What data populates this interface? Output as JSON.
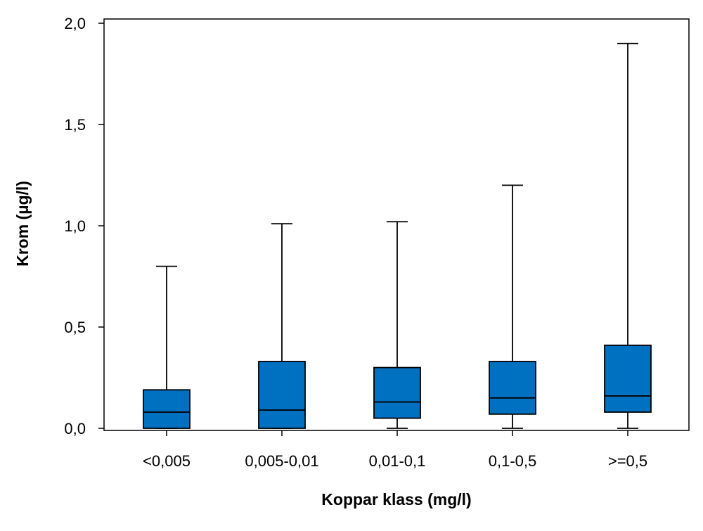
{
  "chart_data": {
    "type": "box",
    "title": "",
    "xlabel": "Koppar klass (mg/l)",
    "ylabel": "Krom (µg/l)",
    "ylim": [
      0.0,
      2.0
    ],
    "yticks": [
      {
        "value": 0.0,
        "label": "0,0"
      },
      {
        "value": 0.5,
        "label": "0,5"
      },
      {
        "value": 1.0,
        "label": "1,0"
      },
      {
        "value": 1.5,
        "label": "1,5"
      },
      {
        "value": 2.0,
        "label": "2,0"
      }
    ],
    "categories": [
      "<0,005",
      "0,005-0,01",
      "0,01-0,1",
      "0,1-0,5",
      ">=0,5"
    ],
    "boxes": [
      {
        "category": "<0,005",
        "min": 0.0,
        "q1": 0.0,
        "median": 0.08,
        "q3": 0.19,
        "max": 0.8
      },
      {
        "category": "0,005-0,01",
        "min": 0.0,
        "q1": 0.0,
        "median": 0.09,
        "q3": 0.33,
        "max": 1.01
      },
      {
        "category": "0,01-0,1",
        "min": 0.0,
        "q1": 0.05,
        "median": 0.13,
        "q3": 0.3,
        "max": 1.02
      },
      {
        "category": "0,1-0,5",
        "min": 0.0,
        "q1": 0.07,
        "median": 0.15,
        "q3": 0.33,
        "max": 1.2
      },
      {
        "category": ">=0,5",
        "min": 0.0,
        "q1": 0.08,
        "median": 0.16,
        "q3": 0.41,
        "max": 1.9
      }
    ],
    "box_color": "#0070c0",
    "line_color": "#000000",
    "grid": false,
    "legend": "none"
  }
}
